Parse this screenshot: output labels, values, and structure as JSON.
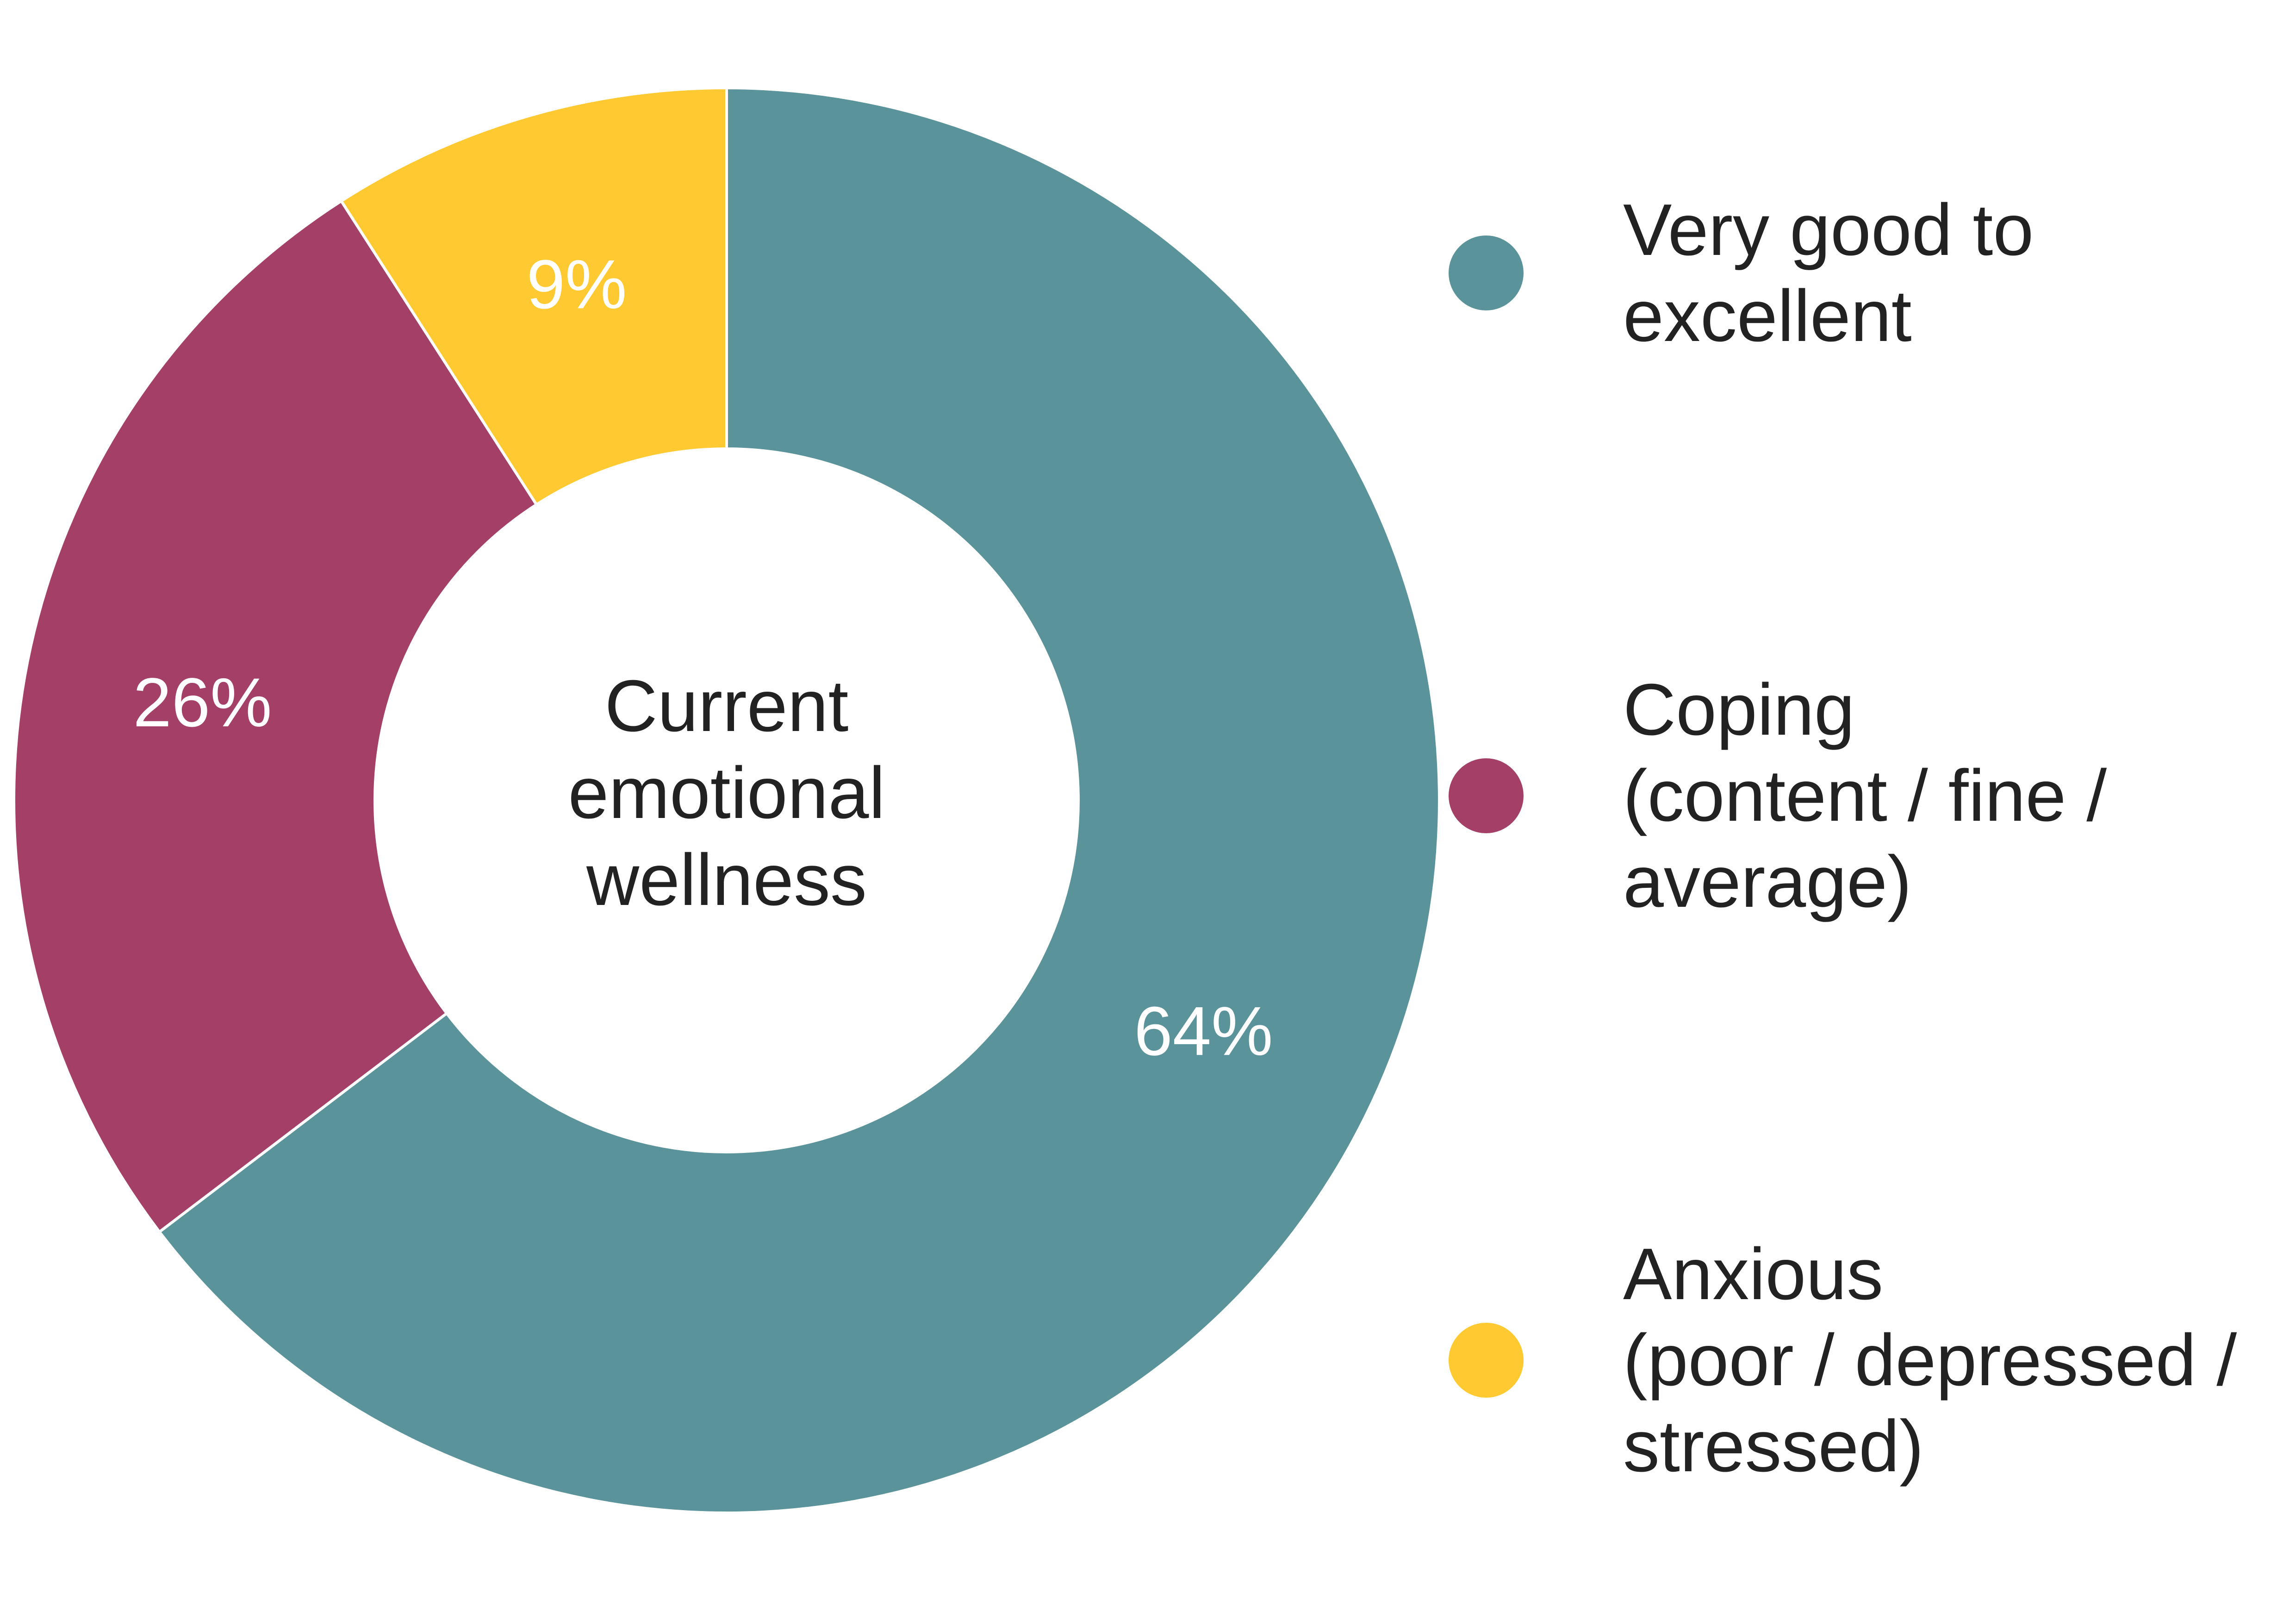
{
  "chart_data": {
    "type": "pie",
    "donut": true,
    "title": "",
    "center_label": [
      "Current",
      "emotional",
      "wellness"
    ],
    "start_angle_deg": 0,
    "direction": "clockwise",
    "legend_position": "right",
    "slices": [
      {
        "name": "Very good to excellent",
        "value": 64,
        "label": "64%",
        "color": "#5b939b",
        "legend_lines": [
          "Very good to",
          "excellent"
        ]
      },
      {
        "name": "Coping (content / fine / average)",
        "value": 26,
        "label": "26%",
        "color": "#a43f68",
        "legend_lines": [
          "Coping",
          "(content / fine /",
          "average)"
        ]
      },
      {
        "name": "Anxious (poor / depressed / stressed)",
        "value": 9,
        "label": "9%",
        "color": "#fec931",
        "legend_lines": [
          "Anxious",
          "(poor / depressed /",
          "stressed)"
        ]
      }
    ]
  }
}
